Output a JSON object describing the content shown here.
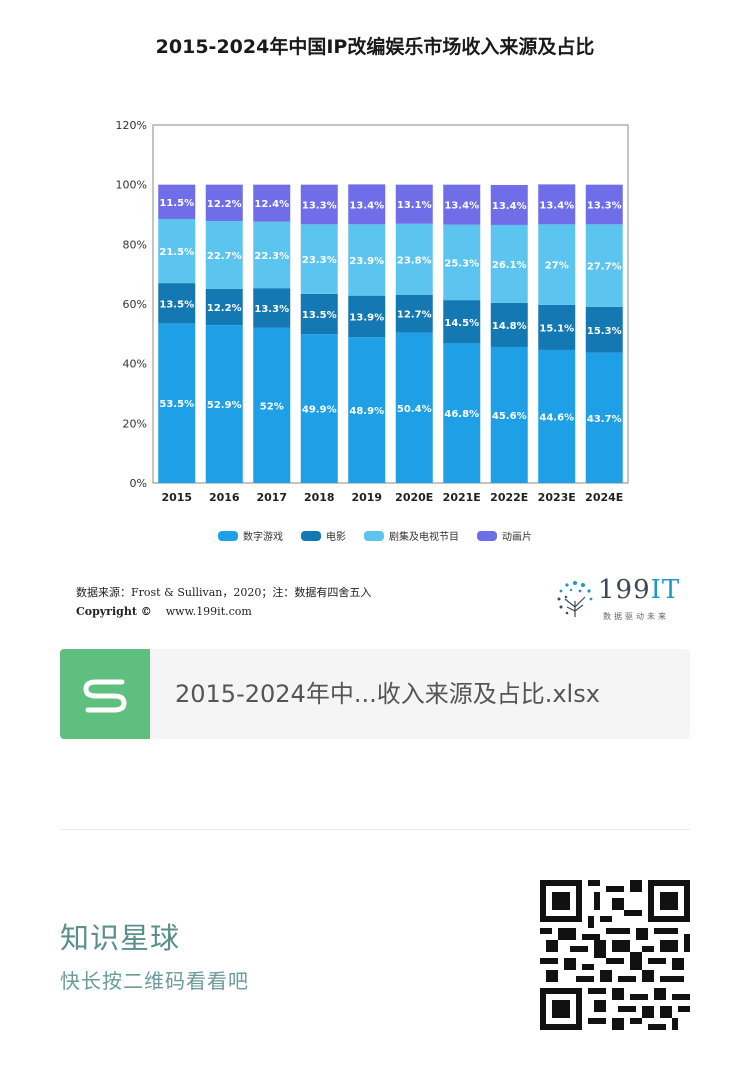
{
  "chart_data": {
    "type": "bar",
    "stacked": true,
    "title": "2015-2024年中国IP改编娱乐市场收入来源及占比",
    "categories": [
      "2015",
      "2016",
      "2017",
      "2018",
      "2019",
      "2020E",
      "2021E",
      "2022E",
      "2023E",
      "2024E"
    ],
    "series": [
      {
        "name": "数字游戏",
        "color": "#1fa0e6",
        "values": [
          53.5,
          52.9,
          52,
          49.9,
          48.9,
          50.4,
          46.8,
          45.6,
          44.6,
          43.7
        ],
        "labels": [
          "53.5%",
          "52.9%",
          "52%",
          "49.9%",
          "48.9%",
          "50.4%",
          "46.8%",
          "45.6%",
          "44.6%",
          "43.7%"
        ]
      },
      {
        "name": "电影",
        "color": "#1478b3",
        "values": [
          13.5,
          12.2,
          13.3,
          13.5,
          13.9,
          12.7,
          14.5,
          14.8,
          15.1,
          15.3
        ],
        "labels": [
          "13.5%",
          "12.2%",
          "13.3%",
          "13.5%",
          "13.9%",
          "12.7%",
          "14.5%",
          "14.8%",
          "15.1%",
          "15.3%"
        ]
      },
      {
        "name": "剧集及电视节目",
        "color": "#5cc5ef",
        "values": [
          21.5,
          22.7,
          22.3,
          23.3,
          23.9,
          23.8,
          25.3,
          26.1,
          27,
          27.7
        ],
        "labels": [
          "21.5%",
          "22.7%",
          "22.3%",
          "23.3%",
          "23.9%",
          "23.8%",
          "25.3%",
          "26.1%",
          "27%",
          "27.7%"
        ]
      },
      {
        "name": "动画片",
        "color": "#6f6ee8",
        "values": [
          11.5,
          12.2,
          12.4,
          13.3,
          13.4,
          13.1,
          13.4,
          13.4,
          13.4,
          13.3
        ],
        "labels": [
          "11.5%",
          "12.2%",
          "12.4%",
          "13.3%",
          "13.4%",
          "13.1%",
          "13.4%",
          "13.4%",
          "13.4%",
          "13.3%"
        ]
      }
    ],
    "ylim": [
      0,
      120
    ],
    "yticks": [
      "0%",
      "20%",
      "40%",
      "60%",
      "80%",
      "100%",
      "120%"
    ],
    "grid": false,
    "legend": "bottom"
  },
  "source": {
    "text": "数据来源：Frost & Sullivan，2020；注：数据有四舍五入",
    "copyright_label": "Copyright ©",
    "url": "www.199it.com"
  },
  "brand": {
    "name_number": "199",
    "name_it": "IT",
    "tagline": "数据驱动未来"
  },
  "file": {
    "name": "2015-2024年中...收入来源及占比.xlsx",
    "icon": "spreadsheet-s-icon"
  },
  "promo": {
    "title": "知识星球",
    "subtitle": "快长按二维码看看吧",
    "qr_icon": "qr-code-icon"
  }
}
